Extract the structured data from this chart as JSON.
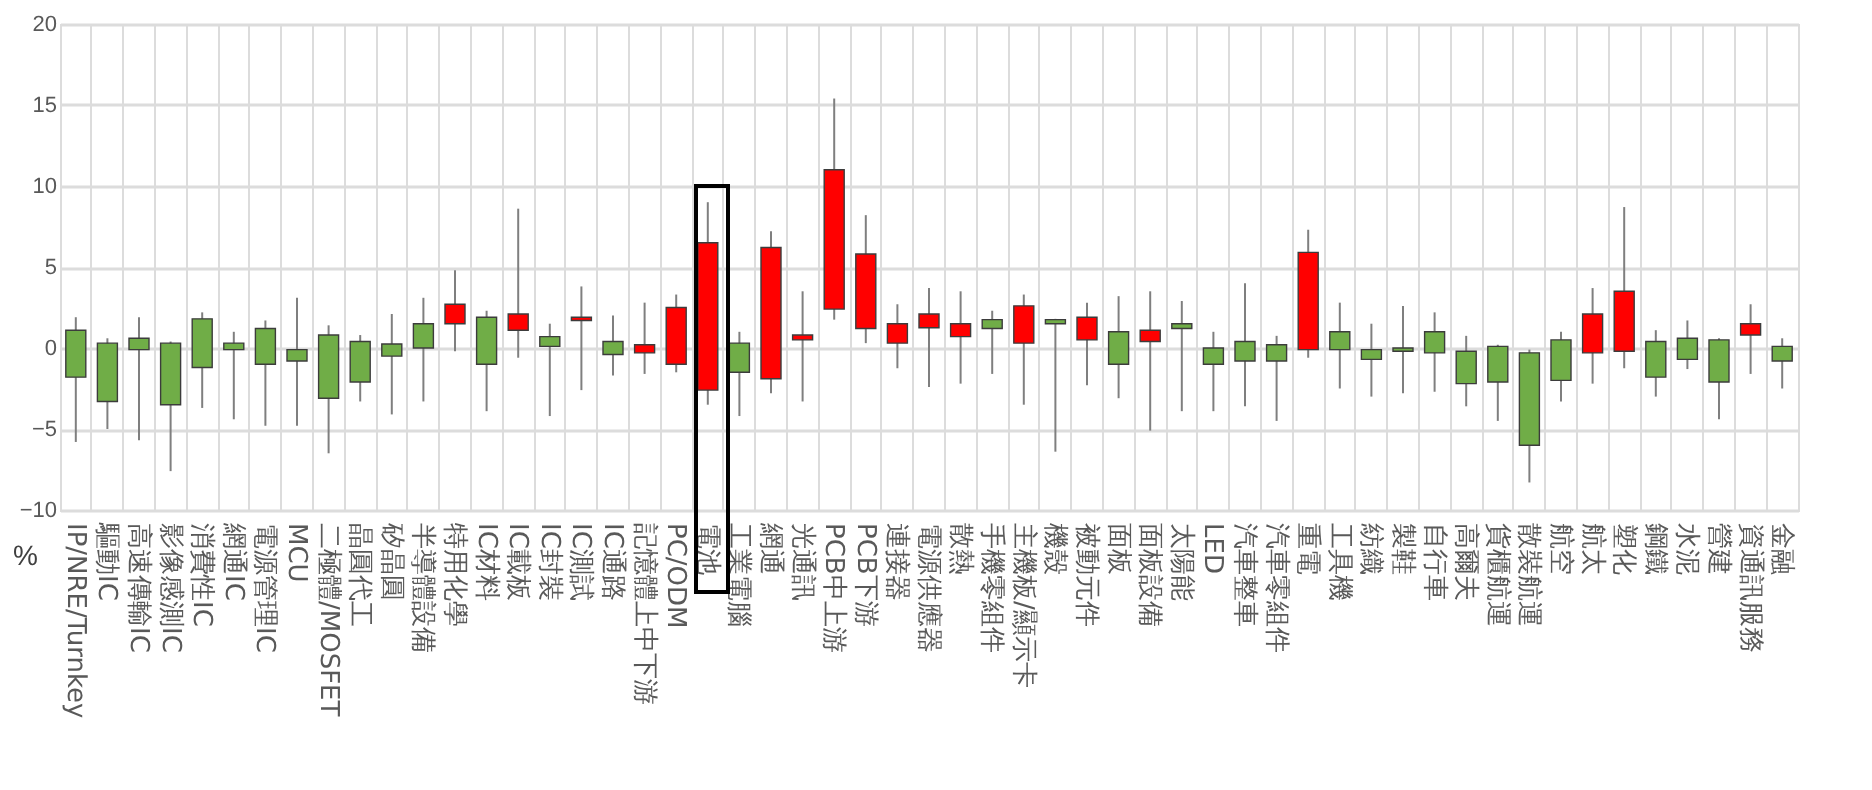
{
  "chart_data": {
    "type": "candlestick",
    "ylabel": "%",
    "ylim": [
      -10,
      20
    ],
    "yticks": [
      -10,
      -5,
      0,
      5,
      10,
      15,
      20
    ],
    "grid": true,
    "categories": [
      "IP/NRE/Turnkey",
      "驅動IC",
      "高速傳輸IC",
      "影像感測IC",
      "消費性IC",
      "網通IC",
      "電源管理IC",
      "MCU",
      "二極體/MOSFET",
      "晶圓代工",
      "矽晶圓",
      "半導體設備",
      "特用化學",
      "IC材料",
      "IC載板",
      "IC封裝",
      "IC測試",
      "IC通路",
      "記憶體上中下游",
      "PC/ODM",
      "電池",
      "工業電腦",
      "網通",
      "光通訊",
      "PCB中上游",
      "PCB下游",
      "連接器",
      "電源供應器",
      "散熱",
      "手機零組件",
      "主機板/顯示卡",
      "機殼",
      "被動元件",
      "面板",
      "面板設備",
      "太陽能",
      "LED",
      "汽車整車",
      "汽車零組件",
      "重電",
      "工具機",
      "紡織",
      "製鞋",
      "自行車",
      "高爾夫",
      "貨櫃航運",
      "散裝航運",
      "航空",
      "航太",
      "塑化",
      "鋼鐵",
      "水泥",
      "營建",
      "資通訊服務",
      "金融"
    ],
    "ohlc": [
      [
        1.1,
        1.9,
        -5.8,
        -1.8
      ],
      [
        0.3,
        0.6,
        -5.0,
        -3.3
      ],
      [
        0.6,
        1.9,
        -5.7,
        -0.1
      ],
      [
        0.3,
        0.4,
        -7.6,
        -3.5
      ],
      [
        1.8,
        2.2,
        -3.7,
        -1.2
      ],
      [
        0.3,
        1.0,
        -4.4,
        -0.1
      ],
      [
        1.2,
        1.7,
        -4.8,
        -1.0
      ],
      [
        -0.1,
        3.1,
        -4.8,
        -0.8
      ],
      [
        0.8,
        1.4,
        -6.5,
        -3.1
      ],
      [
        0.4,
        0.8,
        -3.3,
        -2.1
      ],
      [
        0.25,
        2.1,
        -4.1,
        -0.5
      ],
      [
        1.5,
        3.1,
        -3.3,
        0.0
      ],
      [
        1.5,
        4.8,
        -0.2,
        2.7
      ],
      [
        1.9,
        2.3,
        -3.9,
        -1.0
      ],
      [
        1.1,
        8.6,
        -0.6,
        2.1
      ],
      [
        0.7,
        1.5,
        -4.2,
        0.1
      ],
      [
        1.7,
        3.8,
        -2.6,
        1.9
      ],
      [
        0.4,
        2.0,
        -1.7,
        -0.4
      ],
      [
        -0.3,
        2.8,
        -1.6,
        0.2
      ],
      [
        -1.0,
        3.3,
        -1.5,
        2.5
      ],
      [
        -2.6,
        9.0,
        -3.5,
        6.5
      ],
      [
        0.3,
        1.0,
        -4.2,
        -1.5
      ],
      [
        -1.9,
        7.2,
        -2.8,
        6.2
      ],
      [
        0.5,
        3.5,
        -3.3,
        0.8
      ],
      [
        2.4,
        15.4,
        1.75,
        11.0
      ],
      [
        1.2,
        8.2,
        0.3,
        5.8
      ],
      [
        0.3,
        2.7,
        -1.25,
        1.5
      ],
      [
        1.25,
        3.7,
        -2.4,
        2.1
      ],
      [
        0.7,
        3.5,
        -2.2,
        1.5
      ],
      [
        1.75,
        2.3,
        -1.6,
        1.2
      ],
      [
        0.3,
        3.3,
        -3.5,
        2.6
      ],
      [
        1.75,
        1.8,
        -6.4,
        1.5
      ],
      [
        0.5,
        2.8,
        -2.3,
        1.9
      ],
      [
        1.0,
        3.2,
        -3.1,
        -1.0
      ],
      [
        0.4,
        3.5,
        -5.1,
        1.1
      ],
      [
        1.5,
        2.9,
        -3.9,
        1.2
      ],
      [
        0.0,
        1.0,
        -3.9,
        -1.0
      ],
      [
        0.4,
        4.0,
        -3.6,
        -0.8
      ],
      [
        0.2,
        0.75,
        -4.5,
        -0.8
      ],
      [
        -0.1,
        7.3,
        -0.6,
        5.9
      ],
      [
        1.0,
        2.8,
        -2.5,
        -0.1
      ],
      [
        -0.1,
        1.5,
        -3.0,
        -0.7
      ],
      [
        0.0,
        2.6,
        -2.8,
        -0.2
      ],
      [
        1.0,
        2.2,
        -2.7,
        -0.3
      ],
      [
        -0.2,
        0.75,
        -3.6,
        -2.2
      ],
      [
        0.1,
        0.2,
        -4.5,
        -2.1
      ],
      [
        -0.3,
        -0.1,
        -8.3,
        -6.0
      ],
      [
        0.5,
        1.0,
        -3.3,
        -2.0
      ],
      [
        -0.3,
        3.7,
        -2.2,
        2.1
      ],
      [
        -0.2,
        8.7,
        -1.25,
        3.5
      ],
      [
        0.4,
        1.1,
        -3.0,
        -1.8
      ],
      [
        0.6,
        1.7,
        -1.3,
        -0.7
      ],
      [
        0.5,
        0.6,
        -4.4,
        -2.1
      ],
      [
        0.8,
        2.7,
        -1.6,
        1.5
      ],
      [
        0.1,
        0.6,
        -2.5,
        -0.8
      ]
    ],
    "colors": [
      "#70ad47",
      "#70ad47",
      "#70ad47",
      "#70ad47",
      "#70ad47",
      "#70ad47",
      "#70ad47",
      "#70ad47",
      "#70ad47",
      "#70ad47",
      "#70ad47",
      "#70ad47",
      "#ff0000",
      "#70ad47",
      "#ff0000",
      "#70ad47",
      "#ff0000",
      "#70ad47",
      "#ff0000",
      "#ff0000",
      "#ff0000",
      "#70ad47",
      "#ff0000",
      "#ff0000",
      "#ff0000",
      "#ff0000",
      "#ff0000",
      "#ff0000",
      "#ff0000",
      "#70ad47",
      "#ff0000",
      "#70ad47",
      "#ff0000",
      "#70ad47",
      "#ff0000",
      "#70ad47",
      "#70ad47",
      "#70ad47",
      "#70ad47",
      "#ff0000",
      "#70ad47",
      "#70ad47",
      "#70ad47",
      "#70ad47",
      "#70ad47",
      "#70ad47",
      "#70ad47",
      "#70ad47",
      "#ff0000",
      "#ff0000",
      "#70ad47",
      "#70ad47",
      "#70ad47",
      "#ff0000",
      "#70ad47"
    ]
  }
}
